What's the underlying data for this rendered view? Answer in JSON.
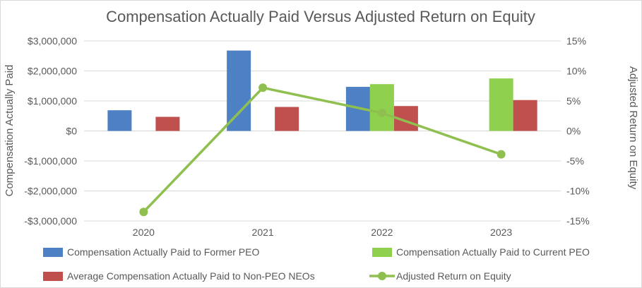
{
  "chart_data": {
    "type": "bar",
    "title": "Compensation Actually Paid Versus Adjusted Return on Equity",
    "categories": [
      "2020",
      "2021",
      "2022",
      "2023"
    ],
    "ylabel": "Compensation Actually Paid",
    "y2label": "Adjusted Return on Equity",
    "ylim": [
      -3000000,
      3000000
    ],
    "y2lim": [
      -15,
      15
    ],
    "y_ticks": [
      {
        "value": 3000000,
        "label": "$3,000,000"
      },
      {
        "value": 2000000,
        "label": "$2,000,000"
      },
      {
        "value": 1000000,
        "label": "$1,000,000"
      },
      {
        "value": 0,
        "label": "$0"
      },
      {
        "value": -1000000,
        "label": "-$1,000,000"
      },
      {
        "value": -2000000,
        "label": "-$2,000,000"
      },
      {
        "value": -3000000,
        "label": "-$3,000,000"
      }
    ],
    "y2_ticks": [
      {
        "value": 15,
        "label": "15%"
      },
      {
        "value": 10,
        "label": "10%"
      },
      {
        "value": 5,
        "label": "5%"
      },
      {
        "value": 0,
        "label": "0%"
      },
      {
        "value": -5,
        "label": "-5%"
      },
      {
        "value": -10,
        "label": "-10%"
      },
      {
        "value": -15,
        "label": "-15%"
      }
    ],
    "grid": true,
    "legend_position": "bottom",
    "series": [
      {
        "name": "Compensation Actually Paid to Former PEO",
        "kind": "bar",
        "axis": "left",
        "color": "#4e81c4",
        "values": [
          690000,
          2680000,
          1470000,
          null
        ]
      },
      {
        "name": "Compensation Actually Paid to Current PEO",
        "kind": "bar",
        "axis": "left",
        "color": "#8fd14f",
        "values": [
          null,
          null,
          1560000,
          1750000
        ]
      },
      {
        "name": "Average Compensation Actually Paid to Non-PEO NEOs",
        "kind": "bar",
        "axis": "left",
        "color": "#c0504d",
        "values": [
          470000,
          800000,
          830000,
          1030000
        ]
      },
      {
        "name": "Adjusted Return on Equity",
        "kind": "line",
        "axis": "right",
        "color": "#8fc04f",
        "values": [
          -13.5,
          7.2,
          3.0,
          -3.9
        ]
      }
    ]
  }
}
